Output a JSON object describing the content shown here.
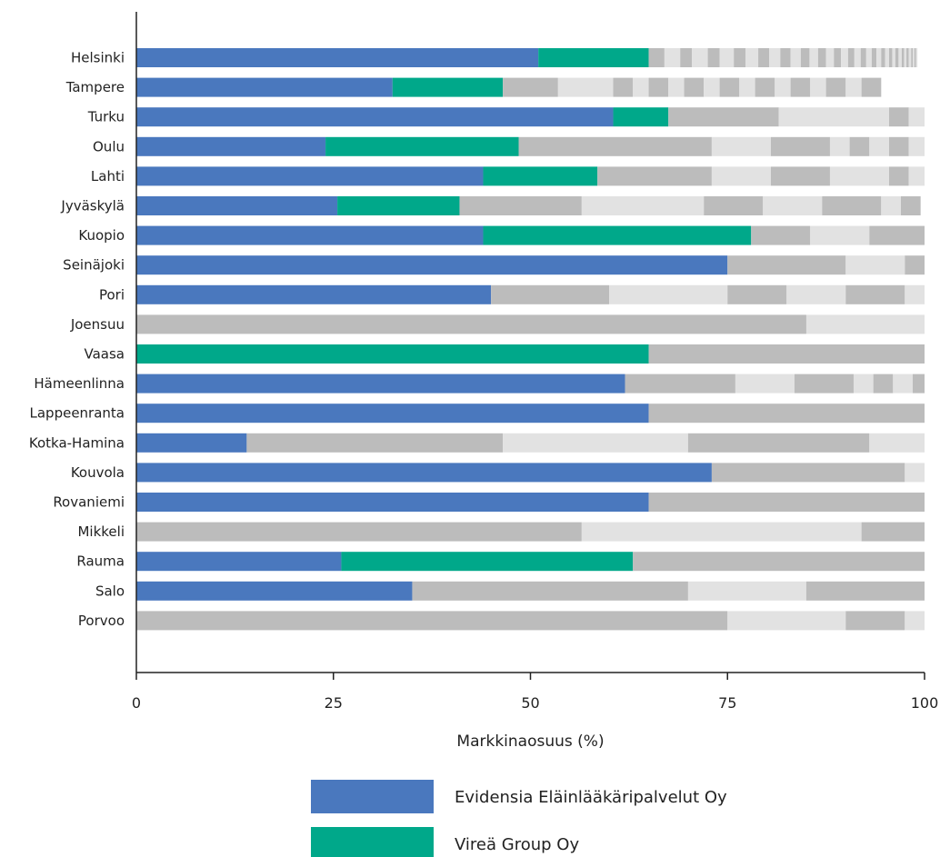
{
  "chart_data": {
    "type": "bar",
    "orientation": "horizontal",
    "stacked": true,
    "xlabel": "Markkinaosuus (%)",
    "xlim": [
      0,
      100
    ],
    "xticks": [
      "0",
      "25",
      "50",
      "75",
      "100"
    ],
    "grid": false,
    "legend_position": "bottom",
    "series_colors": {
      "Evidensia Eläinlääkäripalvelut Oy": "#4a78be",
      "Vireä Group Oy": "#00a88a",
      "other_dark": "#bcbcbc",
      "other_light": "#e2e2e2"
    },
    "legend": [
      {
        "name": "Evidensia Eläinlääkäripalvelut Oy",
        "color": "#4a78be"
      },
      {
        "name": "Vireä Group Oy",
        "color": "#00a88a"
      }
    ],
    "categories": [
      "Helsinki",
      "Tampere",
      "Turku",
      "Oulu",
      "Lahti",
      "Jyväskylä",
      "Kuopio",
      "Seinäjoki",
      "Pori",
      "Joensuu",
      "Vaasa",
      "Hämeenlinna",
      "Lappeenranta",
      "Kotka-Hamina",
      "Kouvola",
      "Rovaniemi",
      "Mikkeli",
      "Rauma",
      "Salo",
      "Porvoo"
    ],
    "bars": [
      {
        "city": "Helsinki",
        "evidensia": 51,
        "virea": 14,
        "others": [
          2,
          2,
          1.5,
          2,
          1.5,
          1.8,
          1.5,
          1.6,
          1.4,
          1.4,
          1.3,
          1.3,
          1.1,
          1.1,
          1,
          1,
          0.9,
          0.9,
          0.8,
          0.8,
          0.7,
          0.7,
          0.6,
          0.6,
          0.5,
          0.5,
          0.4,
          0.4,
          0.4,
          0.4,
          0.3,
          0.3,
          0.3,
          0.3,
          0.2,
          0.2,
          0.2,
          0.2
        ]
      },
      {
        "city": "Tampere",
        "evidensia": 32.5,
        "virea": 14,
        "others": [
          7,
          7,
          2.5,
          2,
          2.5,
          2,
          2.5,
          2,
          2.5,
          2,
          2.5,
          2,
          2.5,
          2,
          2.5,
          2,
          2.5
        ]
      },
      {
        "city": "Turku",
        "evidensia": 60.5,
        "virea": 7,
        "others": [
          14,
          14,
          2.5,
          2
        ]
      },
      {
        "city": "Oulu",
        "evidensia": 24,
        "virea": 24.5,
        "others": [
          24.5,
          7.5,
          7.5,
          2.5,
          2.5,
          2.5,
          2.5,
          2.5
        ]
      },
      {
        "city": "Lahti",
        "evidensia": 44,
        "virea": 14.5,
        "others": [
          14.5,
          7.5,
          7.5,
          7.5,
          2.5,
          2.5
        ]
      },
      {
        "city": "Jyväskylä",
        "evidensia": 25.5,
        "virea": 15.5,
        "others": [
          15.5,
          15.5,
          7.5,
          7.5,
          7.5,
          2.5,
          2.5
        ]
      },
      {
        "city": "Kuopio",
        "evidensia": 44,
        "virea": 34,
        "others": [
          7.5,
          7.5,
          7.5
        ]
      },
      {
        "city": "Seinäjoki",
        "evidensia": 75,
        "virea": 0,
        "others": [
          15,
          7.5,
          2.5
        ]
      },
      {
        "city": "Pori",
        "evidensia": 45,
        "virea": 0,
        "others": [
          15,
          15,
          7.5,
          7.5,
          7.5,
          2.5
        ]
      },
      {
        "city": "Joensuu",
        "evidensia": 0,
        "virea": 0,
        "others": [
          85,
          15
        ]
      },
      {
        "city": "Vaasa",
        "evidensia": 0,
        "virea": 65,
        "others": [
          35
        ]
      },
      {
        "city": "Hämeenlinna",
        "evidensia": 62,
        "virea": 0,
        "others": [
          14,
          7.5,
          7.5,
          2.5,
          2.5,
          2.5,
          1.5
        ]
      },
      {
        "city": "Lappeenranta",
        "evidensia": 65,
        "virea": 0,
        "others": [
          35
        ]
      },
      {
        "city": "Kotka-Hamina",
        "evidensia": 14,
        "virea": 0,
        "others": [
          32.5,
          23.5,
          23,
          7
        ]
      },
      {
        "city": "Kouvola",
        "evidensia": 73,
        "virea": 0,
        "others": [
          24.5,
          2.5
        ]
      },
      {
        "city": "Rovaniemi",
        "evidensia": 65,
        "virea": 0,
        "others": [
          35
        ]
      },
      {
        "city": "Mikkeli",
        "evidensia": 0,
        "virea": 0,
        "others": [
          56.5,
          35.5,
          8
        ]
      },
      {
        "city": "Rauma",
        "evidensia": 26,
        "virea": 37,
        "others": [
          37
        ]
      },
      {
        "city": "Salo",
        "evidensia": 35,
        "virea": 0,
        "others": [
          35,
          15,
          15
        ]
      },
      {
        "city": "Porvoo",
        "evidensia": 0,
        "virea": 0,
        "others": [
          75,
          15,
          7.5,
          2.5
        ]
      }
    ]
  }
}
